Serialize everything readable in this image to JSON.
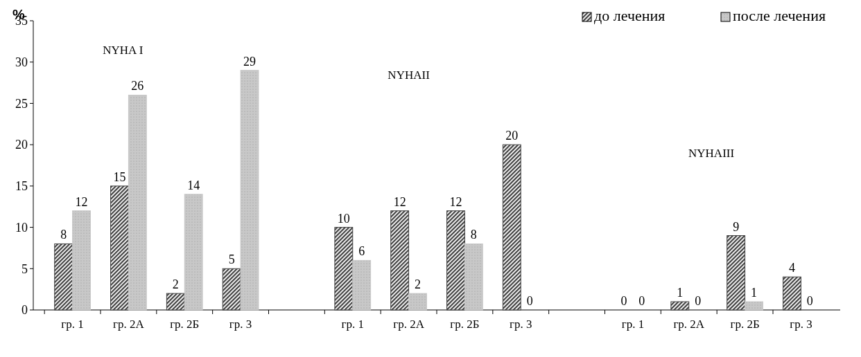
{
  "chart_data": {
    "type": "bar",
    "ylabel": "%",
    "categories": [
      "гр. 1",
      "гр. 2А",
      "гр. 2Б",
      "гр. 3",
      null,
      "гр. 1",
      "гр. 2А",
      "гр. 2Б",
      "гр. 3",
      null,
      "гр. 1",
      "гр. 2А",
      "гр. 2Б",
      "гр. 3"
    ],
    "series": [
      {
        "name": "до лечения",
        "color": "#404040",
        "values": [
          8,
          15,
          2,
          5,
          null,
          10,
          12,
          12,
          20,
          null,
          0,
          1,
          9,
          4
        ]
      },
      {
        "name": "после лечения",
        "color": "#c8c8c8",
        "values": [
          12,
          26,
          14,
          29,
          null,
          6,
          2,
          8,
          0,
          null,
          0,
          0,
          1,
          0
        ]
      }
    ],
    "ylim": [
      0,
      35
    ],
    "yticks": [
      0,
      5,
      10,
      15,
      20,
      25,
      30,
      35
    ],
    "grid": false,
    "legend": "top right",
    "data_labels": true,
    "annotations": [
      "NYHA I",
      "NYHAII",
      "NYHAIII"
    ]
  }
}
